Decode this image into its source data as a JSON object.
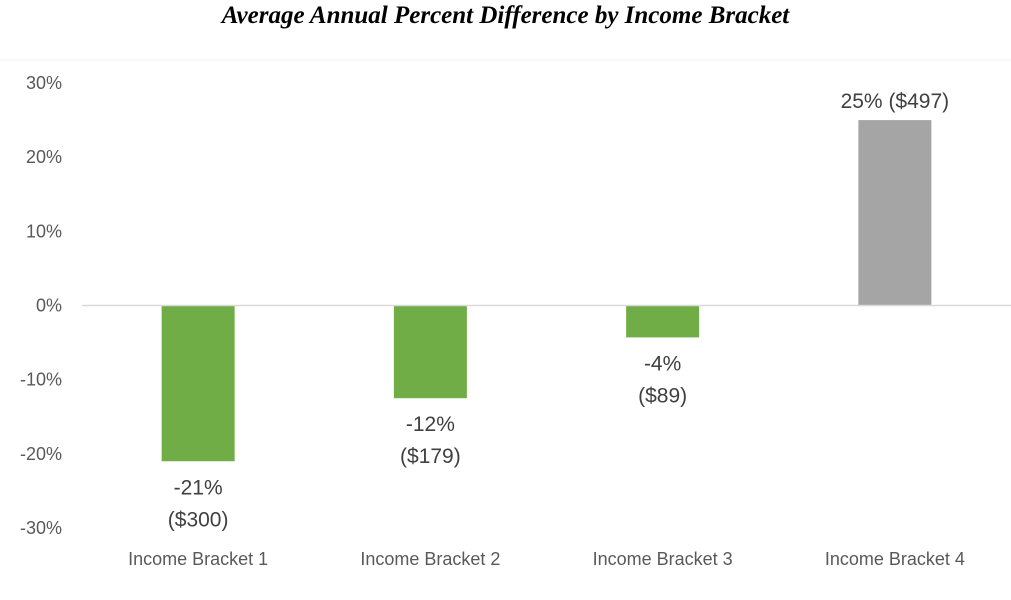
{
  "chart_data": {
    "type": "bar",
    "title": "Average Annual Percent Difference by Income Bracket",
    "xlabel": "",
    "ylabel": "",
    "ylim": [
      -30,
      30
    ],
    "yticks": [
      30,
      20,
      10,
      0,
      -10,
      -20,
      -30
    ],
    "ytick_labels": [
      "30%",
      "20%",
      "10%",
      "0%",
      "-10%",
      "-20%",
      "-30%"
    ],
    "categories": [
      "Income Bracket 1",
      "Income Bracket 2",
      "Income Bracket 3",
      "Income Bracket 4"
    ],
    "values": [
      -21,
      -12.5,
      -4.3,
      25
    ],
    "data_labels": [
      [
        "-21%",
        "($300)"
      ],
      [
        "-12%",
        "($179)"
      ],
      [
        "-4%",
        "($89)"
      ],
      [
        "25% ($497)"
      ]
    ],
    "colors": [
      "#70ad47",
      "#70ad47",
      "#70ad47",
      "#a5a5a5"
    ],
    "grid": false,
    "legend": "none"
  }
}
